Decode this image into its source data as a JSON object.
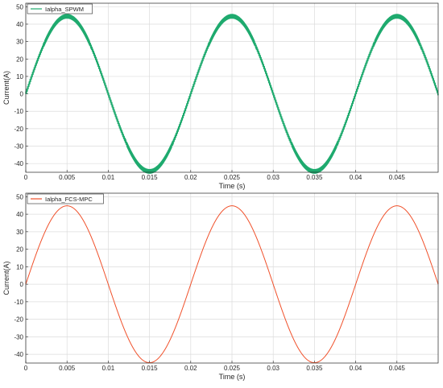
{
  "chart_data": [
    {
      "type": "line",
      "title": "",
      "xlabel": "Time (s)",
      "ylabel": "Current(A)",
      "xlim": [
        0,
        0.05
      ],
      "ylim": [
        -45,
        52
      ],
      "xticks": [
        "0",
        "0.005",
        "0.01",
        "0.015",
        "0.02",
        "0.025",
        "0.03",
        "0.035",
        "0.04",
        "0.045"
      ],
      "yticks": [
        "50",
        "40",
        "30",
        "20",
        "10",
        "0",
        "-10",
        "-20",
        "-30",
        "-40"
      ],
      "grid": true,
      "legend_position": "top-left",
      "series": [
        {
          "name": "Ialpha_SPWM",
          "color": "#1eaa6e",
          "amplitude": 44.5,
          "frequency_hz": 50,
          "ripple": 1.2,
          "description_of_shape": "sinusoid with high-frequency switching ripple"
        }
      ]
    },
    {
      "type": "line",
      "title": "",
      "xlabel": "Time (s)",
      "ylabel": "Current(A)",
      "xlim": [
        0,
        0.05
      ],
      "ylim": [
        -45,
        52
      ],
      "xticks": [
        "0",
        "0.005",
        "0.01",
        "0.015",
        "0.02",
        "0.025",
        "0.03",
        "0.035",
        "0.04",
        "0.045"
      ],
      "yticks": [
        "50",
        "40",
        "30",
        "20",
        "10",
        "0",
        "-10",
        "-20",
        "-30",
        "-40"
      ],
      "grid": true,
      "legend_position": "top-left",
      "series": [
        {
          "name": "Ialpha_FCS-MPC",
          "color": "#f0502a",
          "amplitude": 44.8,
          "frequency_hz": 50,
          "ripple": 0,
          "description_of_shape": "clean sinusoid"
        }
      ]
    }
  ]
}
